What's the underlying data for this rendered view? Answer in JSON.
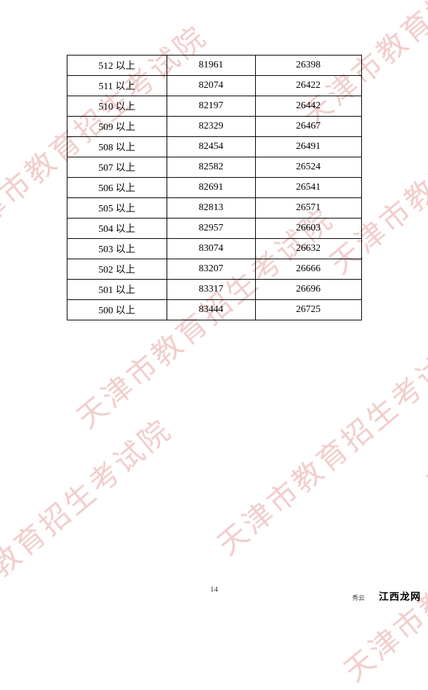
{
  "watermark_text": "天津市教育招生考试院",
  "page_number": "14",
  "footer_brand": "江西龙网",
  "footer_sub": "秀云",
  "table": {
    "rows": [
      {
        "score": "512 以上",
        "col2": "81961",
        "col3": "26398"
      },
      {
        "score": "511 以上",
        "col2": "82074",
        "col3": "26422"
      },
      {
        "score": "510 以上",
        "col2": "82197",
        "col3": "26442"
      },
      {
        "score": "509 以上",
        "col2": "82329",
        "col3": "26467"
      },
      {
        "score": "508 以上",
        "col2": "82454",
        "col3": "26491"
      },
      {
        "score": "507 以上",
        "col2": "82582",
        "col3": "26524"
      },
      {
        "score": "506 以上",
        "col2": "82691",
        "col3": "26541"
      },
      {
        "score": "505 以上",
        "col2": "82813",
        "col3": "26571"
      },
      {
        "score": "504 以上",
        "col2": "82957",
        "col3": "26603"
      },
      {
        "score": "503 以上",
        "col2": "83074",
        "col3": "26632"
      },
      {
        "score": "502 以上",
        "col2": "83207",
        "col3": "26666"
      },
      {
        "score": "501 以上",
        "col2": "83317",
        "col3": "26696"
      },
      {
        "score": "500 以上",
        "col2": "83444",
        "col3": "26725"
      }
    ]
  }
}
